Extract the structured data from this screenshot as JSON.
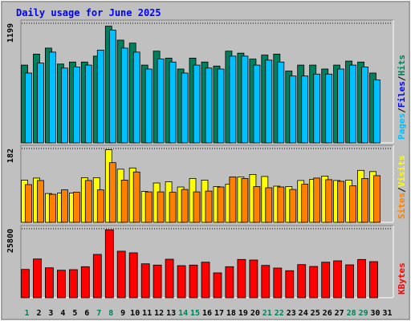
{
  "chart_data": {
    "type": "bar",
    "title": "Daily usage for June 2025",
    "categories": [
      "1",
      "2",
      "3",
      "4",
      "5",
      "6",
      "7",
      "8",
      "9",
      "10",
      "11",
      "12",
      "13",
      "14",
      "15",
      "16",
      "17",
      "18",
      "19",
      "20",
      "21",
      "22",
      "23",
      "24",
      "25",
      "26",
      "27",
      "28",
      "29",
      "30",
      "31"
    ],
    "weekend_days": [
      "1",
      "7",
      "8",
      "14",
      "15",
      "21",
      "22",
      "28",
      "29"
    ],
    "panels": {
      "requests": {
        "max_label": "1199",
        "ylim": [
          0,
          1199
        ],
        "series": [
          {
            "name": "Hits",
            "color": "#00805c",
            "values": [
              780,
              890,
              950,
              790,
              810,
              810,
              870,
              1170,
              1030,
              1000,
              780,
              920,
              850,
              740,
              850,
              810,
              770,
              920,
              900,
              840,
              880,
              890,
              720,
              780,
              780,
              740,
              780,
              820,
              810,
              700,
              null
            ]
          },
          {
            "name": "Files",
            "color": "#0000ff",
            "values": [
              null,
              null,
              null,
              null,
              null,
              null,
              null,
              null,
              null,
              null,
              null,
              null,
              null,
              null,
              null,
              null,
              null,
              null,
              null,
              null,
              null,
              null,
              null,
              null,
              null,
              null,
              null,
              null,
              null,
              null,
              null
            ]
          },
          {
            "name": "Pages",
            "color": "#00c0ff",
            "values": [
              700,
              800,
              910,
              750,
              760,
              780,
              930,
              1130,
              950,
              910,
              740,
              840,
              810,
              700,
              780,
              750,
              740,
              870,
              870,
              780,
              830,
              810,
              670,
              670,
              690,
              690,
              740,
              780,
              760,
              630,
              null
            ]
          }
        ]
      },
      "visits": {
        "max_label": "182",
        "ylim": [
          0,
          182
        ],
        "series": [
          {
            "name": "Visits",
            "color": "#ffff00",
            "values": [
              104,
              109,
              71,
              72,
              72,
              110,
              110,
              179,
              131,
              134,
              76,
              97,
              100,
              87,
              108,
              104,
              88,
              94,
              112,
              118,
              113,
              89,
              88,
              103,
              106,
              114,
              103,
              104,
              128,
              125,
              null
            ]
          },
          {
            "name": "Sites",
            "color": "#ff8000",
            "values": [
              93,
              103,
              69,
              80,
              74,
              103,
              80,
              147,
              104,
              124,
              75,
              75,
              74,
              81,
              75,
              77,
              87,
              112,
              108,
              88,
              85,
              87,
              81,
              94,
              109,
              105,
              101,
              90,
              108,
              115,
              null
            ]
          }
        ]
      },
      "kbytes": {
        "max_label": "25800",
        "ylim": [
          0,
          25800
        ],
        "series": [
          {
            "name": "KBytes",
            "color": "#ff0000",
            "values": [
              10600,
              14500,
              11200,
              10300,
              10500,
              11600,
              16200,
              25400,
              17400,
              16800,
              12700,
              12200,
              14400,
              12000,
              12200,
              13300,
              9300,
              11600,
              14300,
              14100,
              12100,
              11100,
              10100,
              12400,
              11700,
              13300,
              13800,
              12300,
              14300,
              13500,
              null
            ]
          }
        ]
      }
    },
    "legend": {
      "requests": [
        "Pages",
        "/",
        "Files",
        "/",
        "Hits"
      ],
      "visits": [
        "Sites",
        "/",
        "Visits"
      ],
      "kbytes": [
        "KBytes"
      ]
    },
    "colors": {
      "background": "#c0c0c0",
      "title": "#0000ff",
      "axis_text": "#000000",
      "weekend_day": "#00805c",
      "slash": "#000000",
      "bar_outline": "#000000"
    }
  }
}
